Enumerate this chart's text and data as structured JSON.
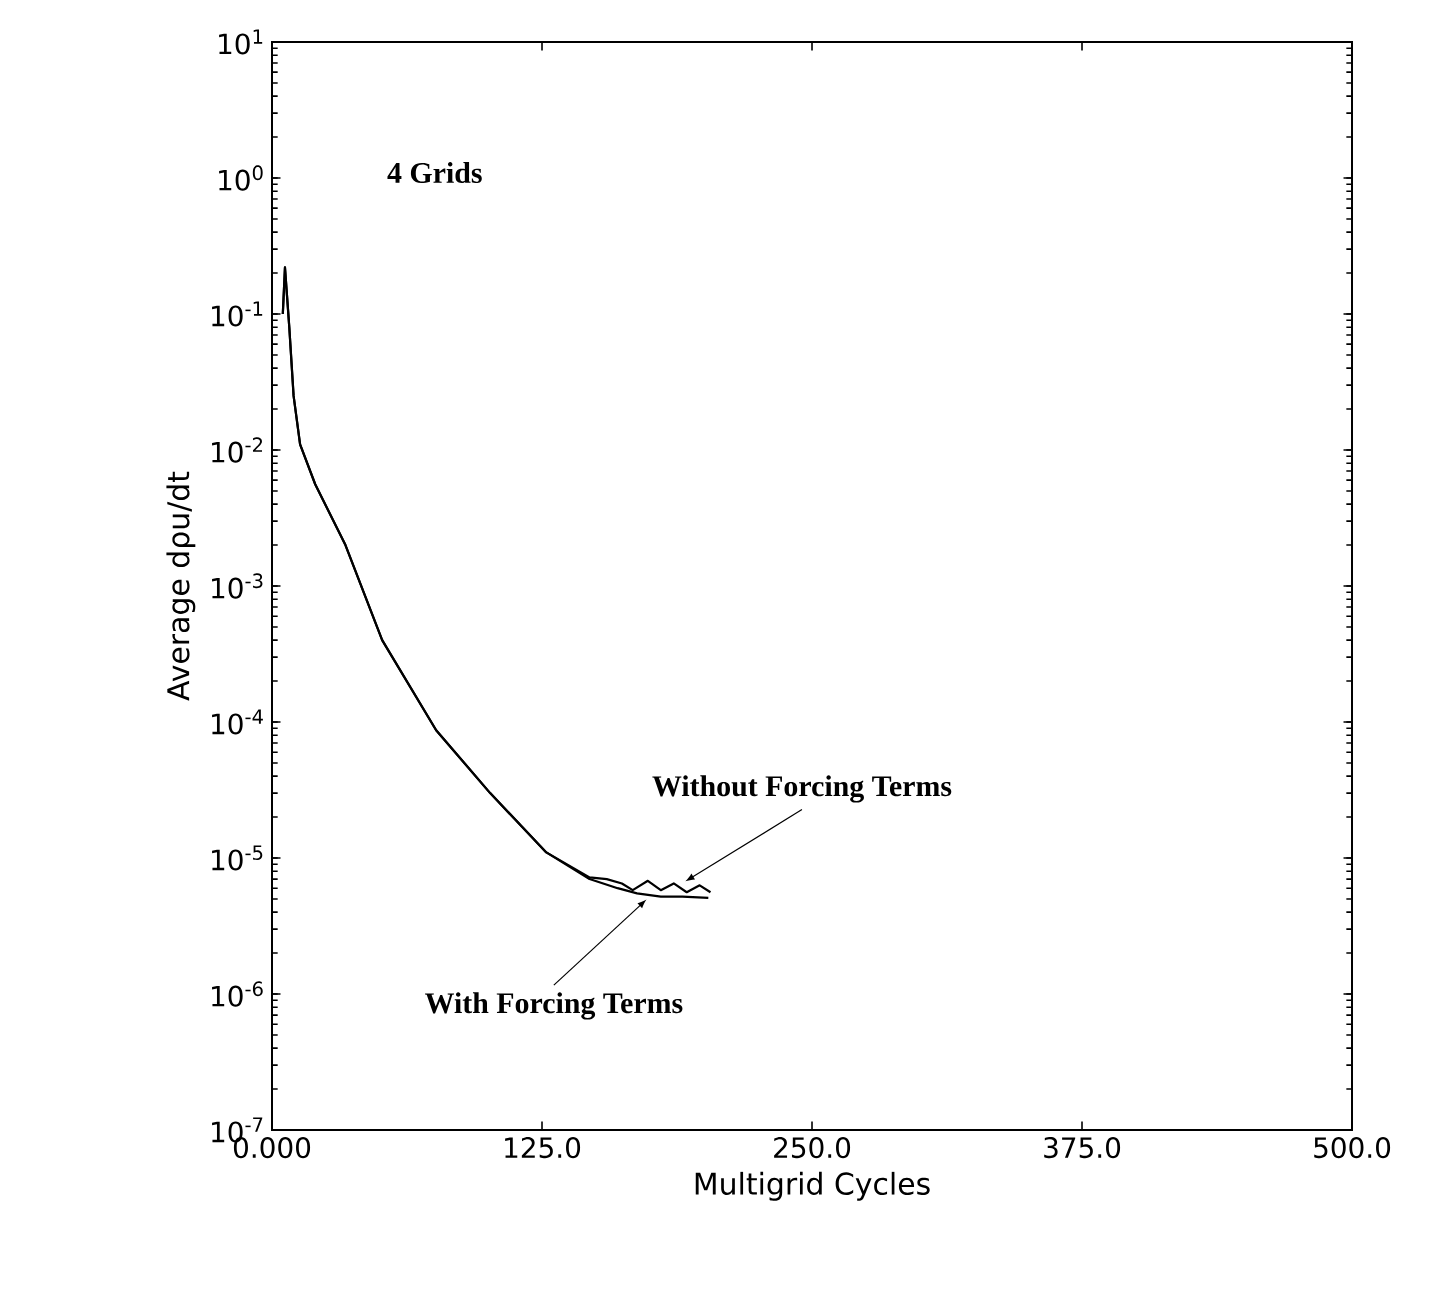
{
  "chart_data": {
    "type": "line",
    "xlabel": "Multigrid Cycles",
    "ylabel": "Average dρu/dt",
    "log": "y",
    "xlim": [
      0,
      500
    ],
    "ylim": [
      1e-07,
      10
    ],
    "xticks": [
      {
        "value": 0,
        "label": "0.000"
      },
      {
        "value": 125,
        "label": "125.0"
      },
      {
        "value": 250,
        "label": "250.0"
      },
      {
        "value": 375,
        "label": "375.0"
      },
      {
        "value": 500,
        "label": "500.0"
      }
    ],
    "yticks": [
      {
        "value": 1e-07,
        "label": "10$^{-7}$"
      },
      {
        "value": 1e-06,
        "label": "10$^{-6}$"
      },
      {
        "value": 1e-05,
        "label": "10$^{-5}$"
      },
      {
        "value": 0.0001,
        "label": "10$^{-4}$"
      },
      {
        "value": 0.001,
        "label": "10$^{-3}$"
      },
      {
        "value": 0.01,
        "label": "10$^{-2}$"
      },
      {
        "value": 0.1,
        "label": "10$^{-1}$"
      },
      {
        "value": 1,
        "label": "10$^{0}$"
      },
      {
        "value": 10,
        "label": "10$^{1}$"
      }
    ],
    "marker": "none",
    "line_style": "solid",
    "annotations": [
      "4 Grids",
      {
        "text": "Without Forcing Terms",
        "x": 190,
        "y": 6.3e-06
      },
      {
        "text": "With Forcing Terms",
        "x": 172,
        "y": 5.3e-06
      }
    ],
    "series": [
      {
        "color": "#000000",
        "x": [
          5,
          6,
          8,
          10,
          13,
          20,
          34,
          51,
          76,
          101,
          127,
          147,
          160,
          169,
          180,
          190,
          202
        ],
        "values": [
          0.1,
          0.22,
          0.08,
          0.025,
          0.011,
          0.0056,
          0.002,
          0.0004,
          8.7e-05,
          3e-05,
          1.1e-05,
          7e-06,
          6e-06,
          5.5e-06,
          5.2e-06,
          5.2e-06,
          5.1e-06
        ]
      },
      {
        "color": "#000000",
        "x": [
          5,
          6,
          8,
          10,
          13,
          20,
          34,
          51,
          76,
          101,
          127,
          147,
          155,
          162,
          167,
          174,
          180,
          186,
          192,
          198,
          203
        ],
        "values": [
          0.1,
          0.22,
          0.08,
          0.025,
          0.011,
          0.0056,
          0.002,
          0.0004,
          8.7e-05,
          3e-05,
          1.1e-05,
          7.2e-06,
          7e-06,
          6.5e-06,
          5.8e-06,
          6.8e-06,
          5.8e-06,
          6.5e-06,
          5.6e-06,
          6.3e-06,
          5.6e-06
        ]
      }
    ]
  }
}
